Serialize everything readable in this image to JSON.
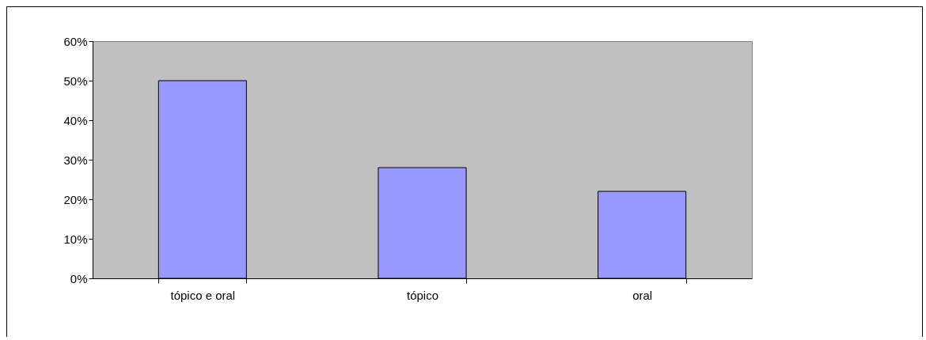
{
  "chart_data": {
    "type": "bar",
    "categories": [
      "tópico e oral",
      "tópico",
      "oral"
    ],
    "values": [
      50,
      28,
      22
    ],
    "color": "#9999ff",
    "ylim": [
      0,
      60
    ],
    "yticks": [
      {
        "value": 0,
        "label": "0%"
      },
      {
        "value": 10,
        "label": "10%"
      },
      {
        "value": 20,
        "label": "20%"
      },
      {
        "value": 30,
        "label": "30%"
      },
      {
        "value": 40,
        "label": "40%"
      },
      {
        "value": 50,
        "label": "50%"
      },
      {
        "value": 60,
        "label": "60%"
      }
    ],
    "grid": false
  }
}
